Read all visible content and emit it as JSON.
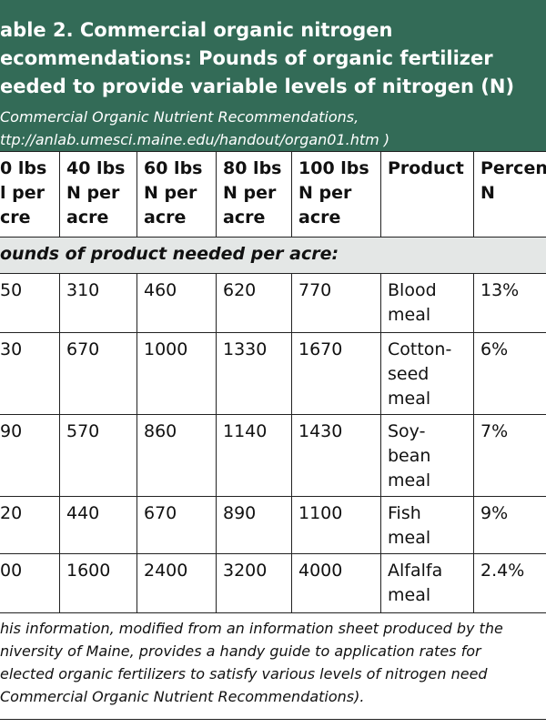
{
  "header": {
    "title": [
      "able 2. Commercial organic nitrogen",
      "ecommendations:  Pounds of organic fertilizer",
      "eeded to provide variable levels of nitrogen (N)"
    ],
    "source": [
      "Commercial Organic Nutrient Recommendations,",
      "ttp://anlab.umesci.maine.edu/handout/organ01.htm )"
    ]
  },
  "table": {
    "columns": [
      [
        "0 lbs",
        "l per",
        "cre"
      ],
      [
        "40 lbs",
        "N per",
        "acre"
      ],
      [
        "60 lbs",
        "N per",
        "acre"
      ],
      [
        "80 lbs",
        "N per",
        "acre"
      ],
      [
        "100 lbs",
        "N per",
        "acre"
      ],
      [
        "Product"
      ],
      [
        "Percen",
        "N"
      ]
    ],
    "subheader": "ounds of product needed per acre:",
    "rows": [
      [
        "50",
        "310",
        "460",
        "620",
        "770",
        [
          "Blood",
          "meal"
        ],
        "13%"
      ],
      [
        "30",
        "670",
        "1000",
        "1330",
        "1670",
        [
          "Cotton-",
          "seed",
          "meal"
        ],
        "6%"
      ],
      [
        "90",
        "570",
        "860",
        "1140",
        "1430",
        [
          "Soy-",
          "bean",
          "meal"
        ],
        "7%"
      ],
      [
        "20",
        "440",
        "670",
        "890",
        "1100",
        [
          "Fish",
          "meal"
        ],
        "9%"
      ],
      [
        "00",
        "1600",
        "2400",
        "3200",
        "4000",
        [
          "Alfalfa",
          "meal"
        ],
        "2.4%"
      ]
    ]
  },
  "footnote": [
    "his information, modified from an information sheet produced by the",
    "niversity of Maine, provides a handy guide to application rates for",
    "elected organic fertilizers to satisfy various levels of nitrogen need",
    "Commercial Organic Nutrient Recommendations)."
  ]
}
